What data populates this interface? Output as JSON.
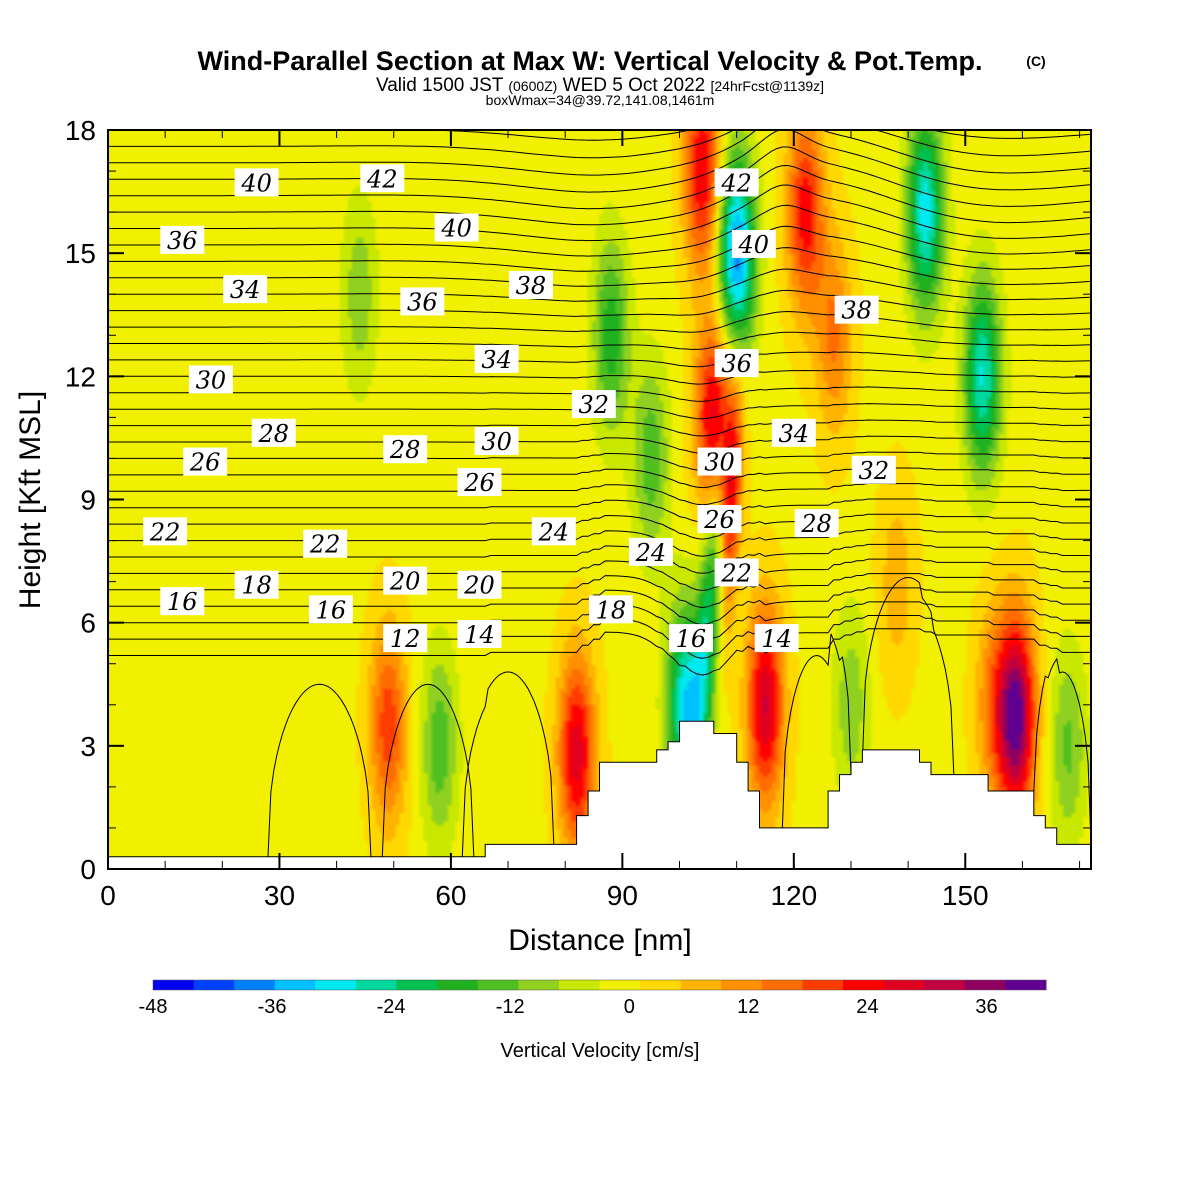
{
  "chart_data": {
    "type": "heatmap",
    "title": "Wind-Parallel Section at Max W: Vertical Velocity & Pot.Temp.",
    "copyright_mark": "(C)",
    "subtitle_main": "Valid 1500 JST",
    "subtitle_utc": "(0600Z)",
    "subtitle_date": "WED 5 Oct 2022",
    "subtitle_forecast": "[24hrFcst@1139z]",
    "subtitle2": "boxWmax=34@39.72,141.08,1461m",
    "xlabel": "Distance [nm]",
    "ylabel": "Height [Kft MSL]",
    "xlim": [
      0,
      172
    ],
    "ylim": [
      0,
      18
    ],
    "x_ticks": [
      "0",
      "30",
      "60",
      "90",
      "120",
      "150"
    ],
    "y_ticks": [
      "0",
      "3",
      "6",
      "9",
      "12",
      "15",
      "18"
    ],
    "colorbar": {
      "label": "Vertical Velocity [cm/s]",
      "range": [
        -48,
        42
      ],
      "tick_labels": [
        "-48",
        "-36",
        "-24",
        "-12",
        "0",
        "12",
        "24",
        "36"
      ],
      "colors": [
        "#0000f0",
        "#0040ff",
        "#0080ff",
        "#00c0ff",
        "#00e8f0",
        "#00d8a0",
        "#00c050",
        "#20b020",
        "#50c020",
        "#90d020",
        "#c8e800",
        "#f0f000",
        "#ffd800",
        "#ffb400",
        "#ff9000",
        "#ff6c00",
        "#ff3c00",
        "#ff0000",
        "#e00020",
        "#c00040",
        "#900060",
        "#600090"
      ]
    },
    "updrafts": [
      {
        "x": 49,
        "z": 3.5,
        "w": 20
      },
      {
        "x": 82,
        "z": 2.8,
        "w": 28
      },
      {
        "x": 106,
        "z": 11,
        "w": 28
      },
      {
        "x": 104,
        "z": 17,
        "w": 26
      },
      {
        "x": 115,
        "z": 4,
        "w": 30
      },
      {
        "x": 122,
        "z": 16,
        "w": 24
      },
      {
        "x": 127,
        "z": 13,
        "w": 14
      },
      {
        "x": 159,
        "z": 3.7,
        "w": 40
      },
      {
        "x": 155,
        "z": 4,
        "w": 14
      },
      {
        "x": 138,
        "z": 7,
        "w": 8
      }
    ],
    "downdrafts": [
      {
        "x": 58,
        "z": 3,
        "w": -14
      },
      {
        "x": 44,
        "z": 14,
        "w": -10
      },
      {
        "x": 88,
        "z": 13,
        "w": -18
      },
      {
        "x": 110,
        "z": 15,
        "w": -38
      },
      {
        "x": 143,
        "z": 16,
        "w": -30
      },
      {
        "x": 153,
        "z": 12,
        "w": -28
      },
      {
        "x": 101,
        "z": 4,
        "w": -30
      },
      {
        "x": 95,
        "z": 10,
        "w": -14
      },
      {
        "x": 168,
        "z": 3,
        "w": -12
      },
      {
        "x": 130,
        "z": 4,
        "w": -10
      }
    ],
    "terrain_x": [
      0,
      2,
      4,
      6,
      8,
      10,
      12,
      14,
      16,
      18,
      20,
      22,
      24,
      26,
      28,
      30,
      32,
      34,
      36,
      38,
      40,
      42,
      44,
      46,
      48,
      50,
      52,
      54,
      56,
      58,
      60,
      62,
      64,
      66,
      68,
      70,
      72,
      74,
      76,
      78,
      80,
      82,
      84,
      86,
      88,
      90,
      92,
      94,
      96,
      98,
      100,
      102,
      104,
      106,
      108,
      110,
      112,
      114,
      116,
      118,
      120,
      122,
      124,
      126,
      128,
      130,
      132,
      134,
      136,
      138,
      140,
      142,
      144,
      146,
      148,
      150,
      152,
      154,
      156,
      158,
      160,
      162,
      164,
      166,
      168,
      170,
      172
    ],
    "terrain_z": [
      0.3,
      0.3,
      0.3,
      0.3,
      0.3,
      0.3,
      0.3,
      0.3,
      0.3,
      0.3,
      0.3,
      0.3,
      0.3,
      0.3,
      0.3,
      0.3,
      0.3,
      0.3,
      0.3,
      0.3,
      0.3,
      0.3,
      0.3,
      0.3,
      0.3,
      0.3,
      0.3,
      0.3,
      0.3,
      0.3,
      0.3,
      0.3,
      0.3,
      0.6,
      0.6,
      0.6,
      0.6,
      0.6,
      0.6,
      0.6,
      0.6,
      1.3,
      1.9,
      2.6,
      2.6,
      2.6,
      2.6,
      2.6,
      2.9,
      3.1,
      3.6,
      3.6,
      3.6,
      3.3,
      3.3,
      2.6,
      1.9,
      1.0,
      1.0,
      1.0,
      1.0,
      1.0,
      1.0,
      1.9,
      2.3,
      2.6,
      2.9,
      2.9,
      2.9,
      2.9,
      2.9,
      2.6,
      2.3,
      2.3,
      2.3,
      2.3,
      2.3,
      1.9,
      1.9,
      1.9,
      1.9,
      1.3,
      1.0,
      0.6,
      0.6,
      0.6,
      0.3
    ],
    "theta_levels": [
      12,
      13,
      14,
      15,
      16,
      17,
      18,
      19,
      20,
      21,
      22,
      23,
      24,
      25,
      26,
      27,
      28,
      29,
      30,
      31,
      32,
      33,
      34,
      35,
      36,
      37,
      38,
      39,
      40,
      41,
      42,
      43,
      44
    ],
    "contour_labels": [
      {
        "text": "40",
        "x": 26,
        "z": 16.7
      },
      {
        "text": "42",
        "x": 48,
        "z": 16.8
      },
      {
        "text": "36",
        "x": 13,
        "z": 15.3
      },
      {
        "text": "40",
        "x": 61,
        "z": 15.6
      },
      {
        "text": "38",
        "x": 74,
        "z": 14.2
      },
      {
        "text": "34",
        "x": 24,
        "z": 14.1
      },
      {
        "text": "36",
        "x": 55,
        "z": 13.8
      },
      {
        "text": "42",
        "x": 110,
        "z": 16.7
      },
      {
        "text": "40",
        "x": 113,
        "z": 15.2
      },
      {
        "text": "38",
        "x": 131,
        "z": 13.6
      },
      {
        "text": "34",
        "x": 68,
        "z": 12.4
      },
      {
        "text": "36",
        "x": 110,
        "z": 12.3
      },
      {
        "text": "30",
        "x": 18,
        "z": 11.9
      },
      {
        "text": "32",
        "x": 85,
        "z": 11.3
      },
      {
        "text": "30",
        "x": 68,
        "z": 10.4
      },
      {
        "text": "34",
        "x": 120,
        "z": 10.6
      },
      {
        "text": "28",
        "x": 29,
        "z": 10.6
      },
      {
        "text": "28",
        "x": 52,
        "z": 10.2
      },
      {
        "text": "30",
        "x": 107,
        "z": 9.9
      },
      {
        "text": "32",
        "x": 134,
        "z": 9.7
      },
      {
        "text": "26",
        "x": 17,
        "z": 9.9
      },
      {
        "text": "26",
        "x": 65,
        "z": 9.4
      },
      {
        "text": "26",
        "x": 107,
        "z": 8.5
      },
      {
        "text": "28",
        "x": 124,
        "z": 8.4
      },
      {
        "text": "22",
        "x": 10,
        "z": 8.2
      },
      {
        "text": "24",
        "x": 78,
        "z": 8.2
      },
      {
        "text": "24",
        "x": 95,
        "z": 7.7
      },
      {
        "text": "22",
        "x": 38,
        "z": 7.9
      },
      {
        "text": "22",
        "x": 110,
        "z": 7.2
      },
      {
        "text": "20",
        "x": 52,
        "z": 7.0
      },
      {
        "text": "20",
        "x": 65,
        "z": 6.9
      },
      {
        "text": "18",
        "x": 26,
        "z": 6.9
      },
      {
        "text": "16",
        "x": 13,
        "z": 6.5
      },
      {
        "text": "16",
        "x": 39,
        "z": 6.3
      },
      {
        "text": "18",
        "x": 88,
        "z": 6.3
      },
      {
        "text": "16",
        "x": 102,
        "z": 5.6
      },
      {
        "text": "14",
        "x": 117,
        "z": 5.6
      },
      {
        "text": "12",
        "x": 52,
        "z": 5.6
      },
      {
        "text": "14",
        "x": 65,
        "z": 5.7
      }
    ]
  }
}
